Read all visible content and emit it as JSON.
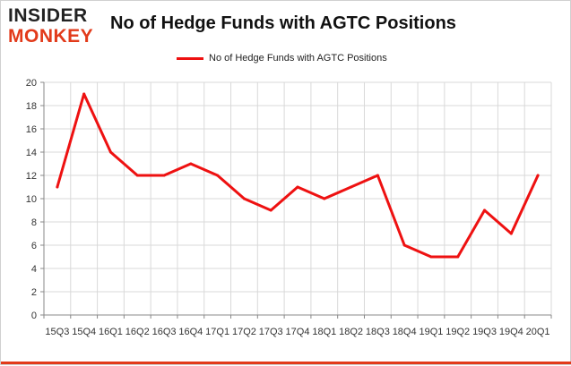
{
  "logo": {
    "line1": "INSIDER",
    "line2": "MONKEY"
  },
  "chart_data": {
    "type": "line",
    "title": "No of Hedge Funds with AGTC Positions",
    "categories": [
      "15Q3",
      "15Q4",
      "16Q1",
      "16Q2",
      "16Q3",
      "16Q4",
      "17Q1",
      "17Q2",
      "17Q3",
      "17Q4",
      "18Q1",
      "18Q2",
      "18Q3",
      "18Q4",
      "19Q1",
      "19Q2",
      "19Q3",
      "19Q4",
      "20Q1"
    ],
    "series": [
      {
        "name": "No of Hedge Funds with AGTC Positions",
        "color": "#ee1111",
        "values": [
          11,
          19,
          14,
          12,
          12,
          13,
          12,
          10,
          9,
          11,
          10,
          11,
          12,
          6,
          5,
          5,
          9,
          7,
          12
        ]
      }
    ],
    "ylim": [
      0,
      20
    ],
    "yticks": [
      "0",
      "2",
      "4",
      "6",
      "8",
      "10",
      "12",
      "14",
      "16",
      "18",
      "20"
    ],
    "grid": true,
    "legend": "top-center",
    "xlabel": "",
    "ylabel": ""
  }
}
